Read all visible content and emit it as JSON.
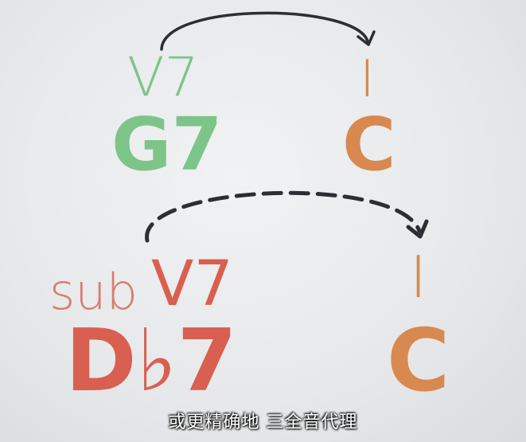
{
  "top": {
    "numeral_left": "V7",
    "chord_left": "G7",
    "numeral_right": "I",
    "chord_right": "C",
    "arrow_style": "solid"
  },
  "bottom": {
    "prefix": "sub",
    "numeral_left": "V7",
    "chord_left": "D♭7",
    "numeral_right": "I",
    "chord_right": "C",
    "arrow_style": "dashed"
  },
  "subtitle": "或更精确地 三全音代理",
  "colors": {
    "green": "#7dc489",
    "red": "#d95f50",
    "light_red": "#d87d71",
    "orange": "#d8894f",
    "arrow": "#2b2f33"
  }
}
